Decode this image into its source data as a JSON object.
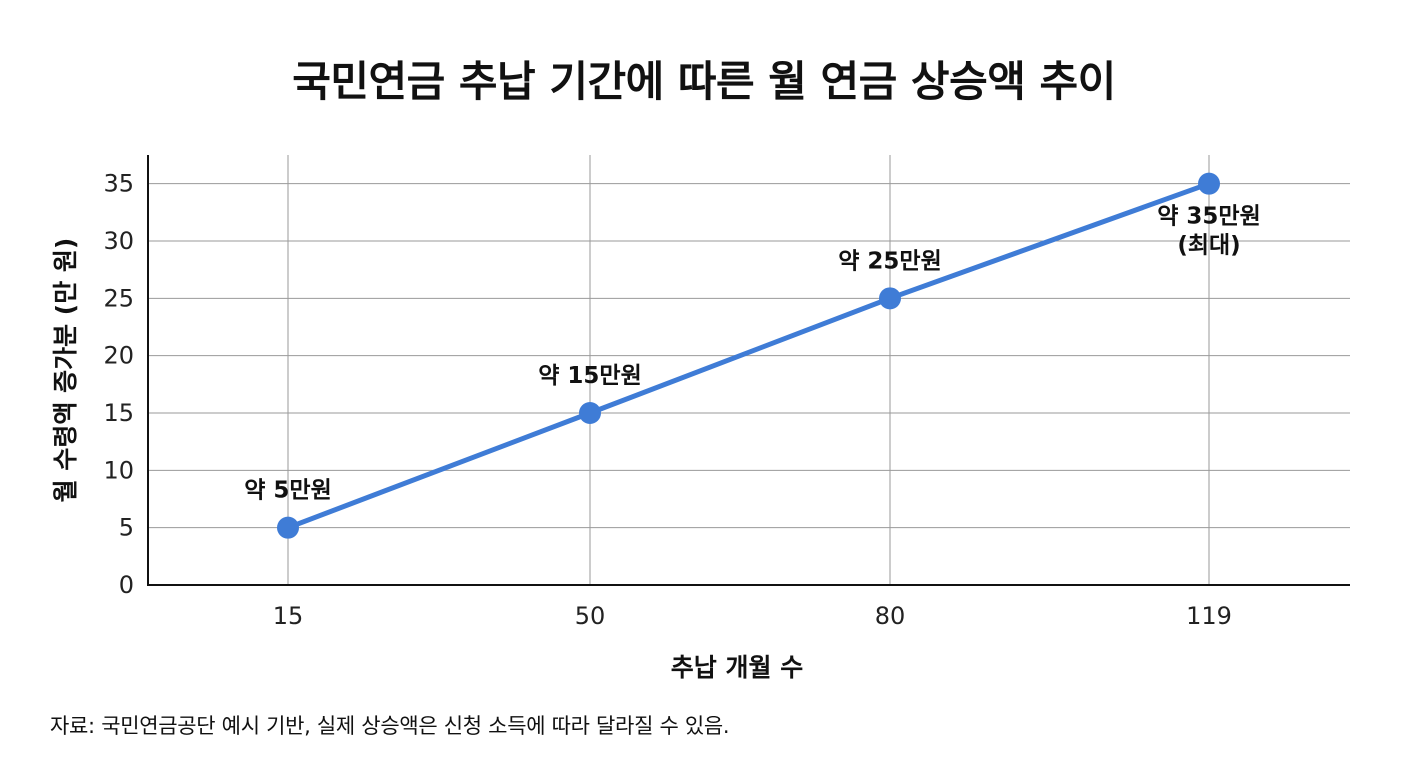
{
  "chart_data": {
    "type": "line",
    "title": "국민연금 추납 기간에 따른 월 연금 상승액 추이",
    "xlabel": "추납 개월 수",
    "ylabel": "월 수령액 증가분 (만 원)",
    "categories": [
      "15",
      "50",
      "80",
      "119"
    ],
    "x": [
      15,
      50,
      80,
      119
    ],
    "series": [
      {
        "values": [
          5,
          15,
          25,
          35
        ],
        "color": "#3f7cd6"
      }
    ],
    "data_labels": [
      [
        "약 5만원"
      ],
      [
        "약 15만원"
      ],
      [
        "약 25만원"
      ],
      [
        "약 35만원",
        "(최대)"
      ]
    ],
    "yticks": [
      0,
      5,
      10,
      15,
      20,
      25,
      30,
      35
    ],
    "ylim": [
      0,
      37.5
    ],
    "grid": true,
    "legend": "none"
  },
  "footnote": "자료: 국민연금공단 예시 기반, 실제 상승액은 신청 소득에 따라 달라질 수 있음."
}
